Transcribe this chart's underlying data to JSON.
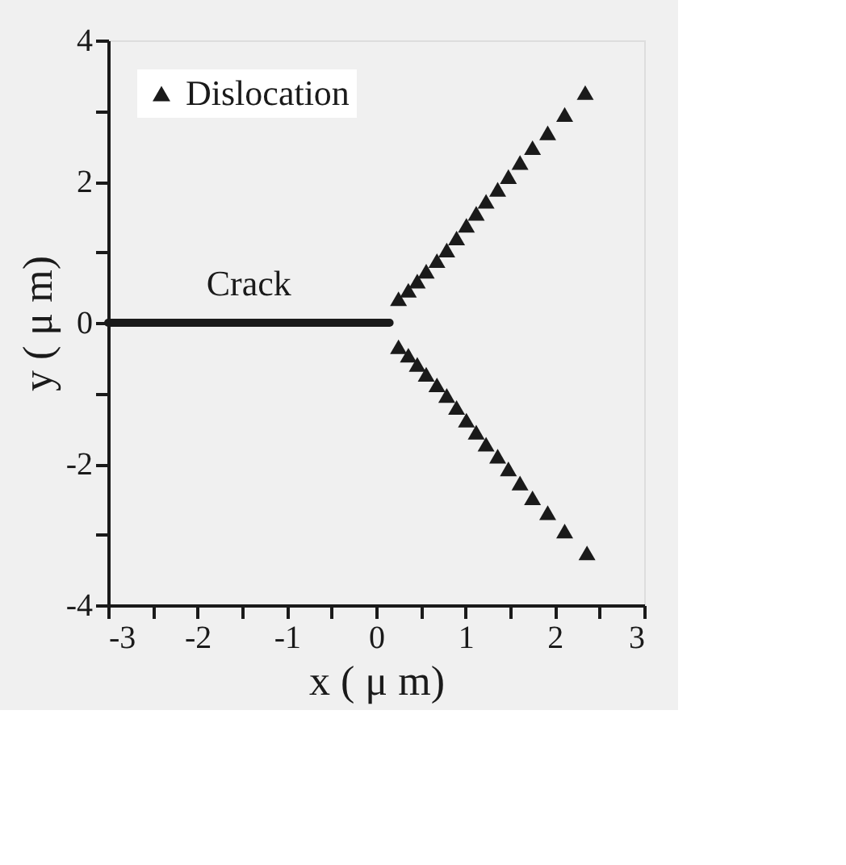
{
  "chart_data": {
    "type": "scatter",
    "xlabel": "x ( μ m)",
    "ylabel": "y ( μ m)",
    "xlim": [
      -3,
      3
    ],
    "ylim": [
      -4,
      4
    ],
    "xticks": [
      -3,
      {
        "value": -2.5,
        "label": null
      },
      -2,
      {
        "value": -1.5,
        "label": null
      },
      -1,
      {
        "value": -0.5,
        "label": null
      },
      0,
      {
        "value": 0.5,
        "label": null
      },
      1,
      {
        "value": 1.5,
        "label": null
      },
      2,
      {
        "value": 2.5,
        "label": null
      },
      3
    ],
    "yticks": [
      -4,
      {
        "value": -3,
        "label": null
      },
      -2,
      {
        "value": -1,
        "label": null
      },
      0,
      {
        "value": 1,
        "label": null
      },
      2,
      {
        "value": 3,
        "label": null
      },
      4
    ],
    "grid": false,
    "legend": "top left",
    "series": [
      {
        "type": "line",
        "name": "Crack",
        "color": "#1a1a1a",
        "line_style": "solid",
        "x": [
          -3,
          0.15
        ],
        "values": [
          0,
          0
        ]
      },
      {
        "name": "Dislocation",
        "color": "#1a1a1a",
        "marker": "triangle",
        "x": [
          0.25,
          0.36,
          0.46,
          0.56,
          0.68,
          0.79,
          0.9,
          1.01,
          1.12,
          1.23,
          1.36,
          1.48,
          1.61,
          1.75,
          1.92,
          2.11,
          2.34,
          0.25,
          0.36,
          0.46,
          0.56,
          0.68,
          0.79,
          0.9,
          1.01,
          1.12,
          1.23,
          1.36,
          1.48,
          1.61,
          1.75,
          1.92,
          2.11,
          2.36
        ],
        "values": [
          0.34,
          0.46,
          0.59,
          0.73,
          0.88,
          1.03,
          1.2,
          1.38,
          1.55,
          1.72,
          1.89,
          2.07,
          2.27,
          2.48,
          2.69,
          2.95,
          3.26,
          -0.34,
          -0.46,
          -0.59,
          -0.73,
          -0.88,
          -1.03,
          -1.2,
          -1.38,
          -1.55,
          -1.72,
          -1.89,
          -2.07,
          -2.27,
          -2.48,
          -2.69,
          -2.95,
          -3.26
        ]
      }
    ]
  }
}
